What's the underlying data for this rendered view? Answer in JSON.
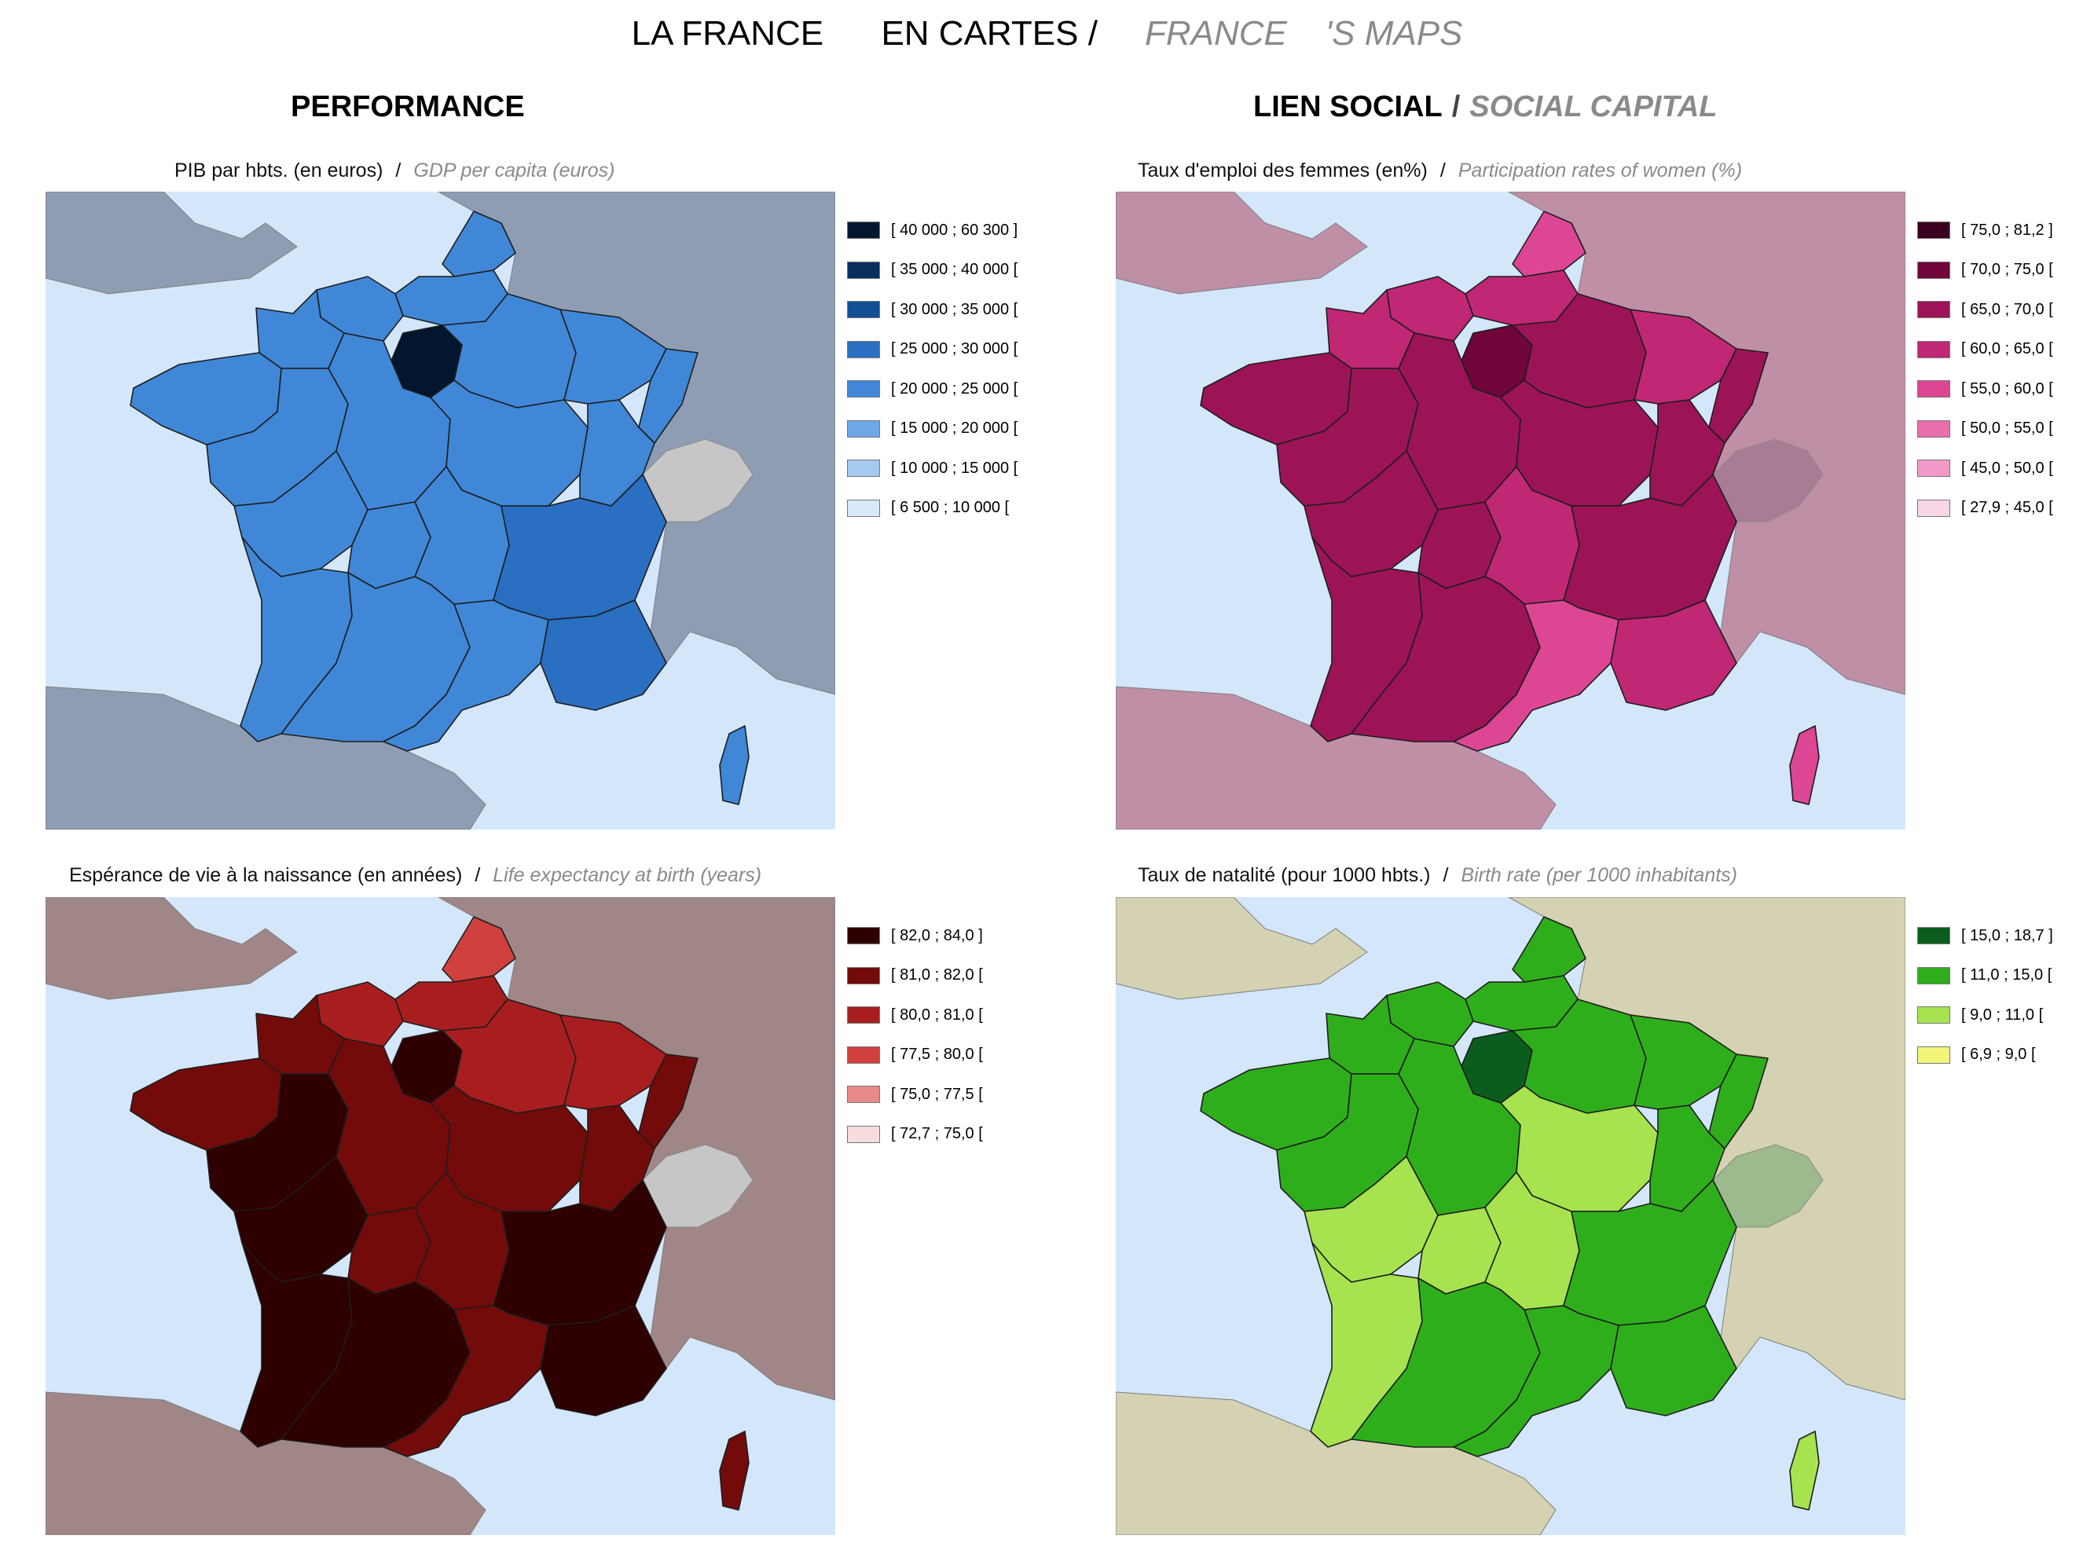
{
  "header": {
    "title_fr": "LA FRANCE      EN CARTES /",
    "title_en": "FRANCE    'S MAPS"
  },
  "sections": {
    "left": {
      "label": "PERFORMANCE"
    },
    "right": {
      "label": "LIEN SOCIAL",
      "sep": "/",
      "label_en": "SOCIAL CAPITAL"
    }
  },
  "maps": [
    {
      "id": "gdp",
      "caption_fr": "PIB par hbts. (en euros)",
      "sep": "/",
      "caption_en": "GDP per capita (euros)",
      "background": {
        "sea": "#d4e6f9",
        "land": "#8e9db3",
        "land_other": "#c6c6c6"
      },
      "legend": [
        {
          "label": "[ 40 000 ; 60 300 ]",
          "color": "#02172f"
        },
        {
          "label": "[ 35 000 ; 40 000 [",
          "color": "#0a2f5e"
        },
        {
          "label": "[ 30 000 ; 35 000 [",
          "color": "#134f95"
        },
        {
          "label": "[ 25 000 ; 30 000 [",
          "color": "#2a6fc2"
        },
        {
          "label": "[ 20 000 ; 25 000 [",
          "color": "#4087d7"
        },
        {
          "label": "[ 15 000 ; 20 000 [",
          "color": "#6ea9e6"
        },
        {
          "label": "[ 10 000 ; 15 000 [",
          "color": "#a5caf0"
        },
        {
          "label": "[ 6 500 ; 10 000 [",
          "color": "#d8e9f9"
        }
      ],
      "regions": {
        "nord": "#4087d7",
        "picardie": "#4087d7",
        "haute_normandie": "#4087d7",
        "basse_normandie": "#4087d7",
        "bretagne": "#4087d7",
        "idf": "#02172f",
        "champagne": "#4087d7",
        "lorraine": "#4087d7",
        "alsace": "#4087d7",
        "pays_loire": "#4087d7",
        "centre": "#4087d7",
        "bourgogne": "#4087d7",
        "franche_comte": "#4087d7",
        "poitou": "#4087d7",
        "limousin": "#4087d7",
        "auvergne": "#4087d7",
        "rhone_alpes": "#2a6fc2",
        "aquitaine": "#4087d7",
        "midi_pyrenees": "#4087d7",
        "languedoc": "#4087d7",
        "paca": "#2a6fc2",
        "corse": "#4087d7"
      }
    },
    {
      "id": "women",
      "caption_fr": "Taux d'emploi des femmes (en%)",
      "sep": "/",
      "caption_en": "Participation rates of women (%)",
      "background": {
        "sea": "#d4e6f9",
        "land": "#bf8fa6",
        "land_other": "#a87c93"
      },
      "legend": [
        {
          "label": "[ 75,0 ; 81,2 ]",
          "color": "#3a0020"
        },
        {
          "label": "[ 70,0 ; 75,0 [",
          "color": "#70063a"
        },
        {
          "label": "[ 65,0 ; 70,0 [",
          "color": "#9c1457"
        },
        {
          "label": "[ 60,0 ; 65,0 [",
          "color": "#c02775"
        },
        {
          "label": "[ 55,0 ; 60,0 [",
          "color": "#dc4694"
        },
        {
          "label": "[ 50,0 ; 55,0 [",
          "color": "#e86ead"
        },
        {
          "label": "[ 45,0 ; 50,0 [",
          "color": "#f29bc8"
        },
        {
          "label": "[ 27,9 ; 45,0 [",
          "color": "#f9d5e8"
        }
      ],
      "regions": {
        "nord": "#dc4694",
        "picardie": "#c02775",
        "haute_normandie": "#c02775",
        "basse_normandie": "#c02775",
        "bretagne": "#9c1457",
        "idf": "#70063a",
        "champagne": "#9c1457",
        "lorraine": "#c02775",
        "alsace": "#9c1457",
        "pays_loire": "#9c1457",
        "centre": "#9c1457",
        "bourgogne": "#9c1457",
        "franche_comte": "#9c1457",
        "poitou": "#9c1457",
        "limousin": "#9c1457",
        "auvergne": "#c02775",
        "rhone_alpes": "#9c1457",
        "aquitaine": "#9c1457",
        "midi_pyrenees": "#9c1457",
        "languedoc": "#dc4694",
        "paca": "#c02775",
        "corse": "#dc4694"
      }
    },
    {
      "id": "life",
      "caption_fr": "Espérance de vie à la naissance (en années)",
      "sep": "/",
      "caption_en": "Life expectancy at birth (years)",
      "background": {
        "sea": "#d4e6f9",
        "land": "#a08686",
        "land_other": "#c6c6c6"
      },
      "legend": [
        {
          "label": "[ 82,0 ; 84,0 ]",
          "color": "#2e0000"
        },
        {
          "label": "[ 81,0 ; 82,0 [",
          "color": "#730b0b"
        },
        {
          "label": "[ 80,0 ; 81,0 [",
          "color": "#a81e1e"
        },
        {
          "label": "[ 77,5 ; 80,0 [",
          "color": "#d0403e"
        },
        {
          "label": "[ 75,0 ; 77,5 [",
          "color": "#e88a88"
        },
        {
          "label": "[ 72,7 ; 75,0 [",
          "color": "#f6dcdc"
        }
      ],
      "regions": {
        "nord": "#d0403e",
        "picardie": "#a81e1e",
        "haute_normandie": "#a81e1e",
        "basse_normandie": "#730b0b",
        "bretagne": "#730b0b",
        "idf": "#2e0000",
        "champagne": "#a81e1e",
        "lorraine": "#a81e1e",
        "alsace": "#730b0b",
        "pays_loire": "#2e0000",
        "centre": "#730b0b",
        "bourgogne": "#730b0b",
        "franche_comte": "#730b0b",
        "poitou": "#2e0000",
        "limousin": "#730b0b",
        "auvergne": "#730b0b",
        "rhone_alpes": "#2e0000",
        "aquitaine": "#2e0000",
        "midi_pyrenees": "#2e0000",
        "languedoc": "#730b0b",
        "paca": "#2e0000",
        "corse": "#730b0b"
      }
    },
    {
      "id": "birth",
      "caption_fr": "Taux de natalité (pour 1000 hbts.)",
      "sep": "/",
      "caption_en": "Birth rate (per 1000 inhabitants)",
      "background": {
        "sea": "#d4e6f9",
        "land": "#d4d2b2",
        "land_other": "#9cba8c"
      },
      "legend": [
        {
          "label": "[ 15,0 ; 18,7 ]",
          "color": "#0b5d1e"
        },
        {
          "label": "[ 11,0 ; 15,0 [",
          "color": "#2fae1c"
        },
        {
          "label": "[ 9,0 ; 11,0 [",
          "color": "#a6e34e"
        },
        {
          "label": "[ 6,9 ; 9,0 [",
          "color": "#f2f57a"
        }
      ],
      "regions": {
        "nord": "#2fae1c",
        "picardie": "#2fae1c",
        "haute_normandie": "#2fae1c",
        "basse_normandie": "#2fae1c",
        "bretagne": "#2fae1c",
        "idf": "#0b5d1e",
        "champagne": "#2fae1c",
        "lorraine": "#2fae1c",
        "alsace": "#2fae1c",
        "pays_loire": "#2fae1c",
        "centre": "#2fae1c",
        "bourgogne": "#a6e34e",
        "franche_comte": "#2fae1c",
        "poitou": "#a6e34e",
        "limousin": "#a6e34e",
        "auvergne": "#a6e34e",
        "rhone_alpes": "#2fae1c",
        "aquitaine": "#a6e34e",
        "midi_pyrenees": "#2fae1c",
        "languedoc": "#2fae1c",
        "paca": "#2fae1c",
        "corse": "#a6e34e"
      }
    }
  ]
}
